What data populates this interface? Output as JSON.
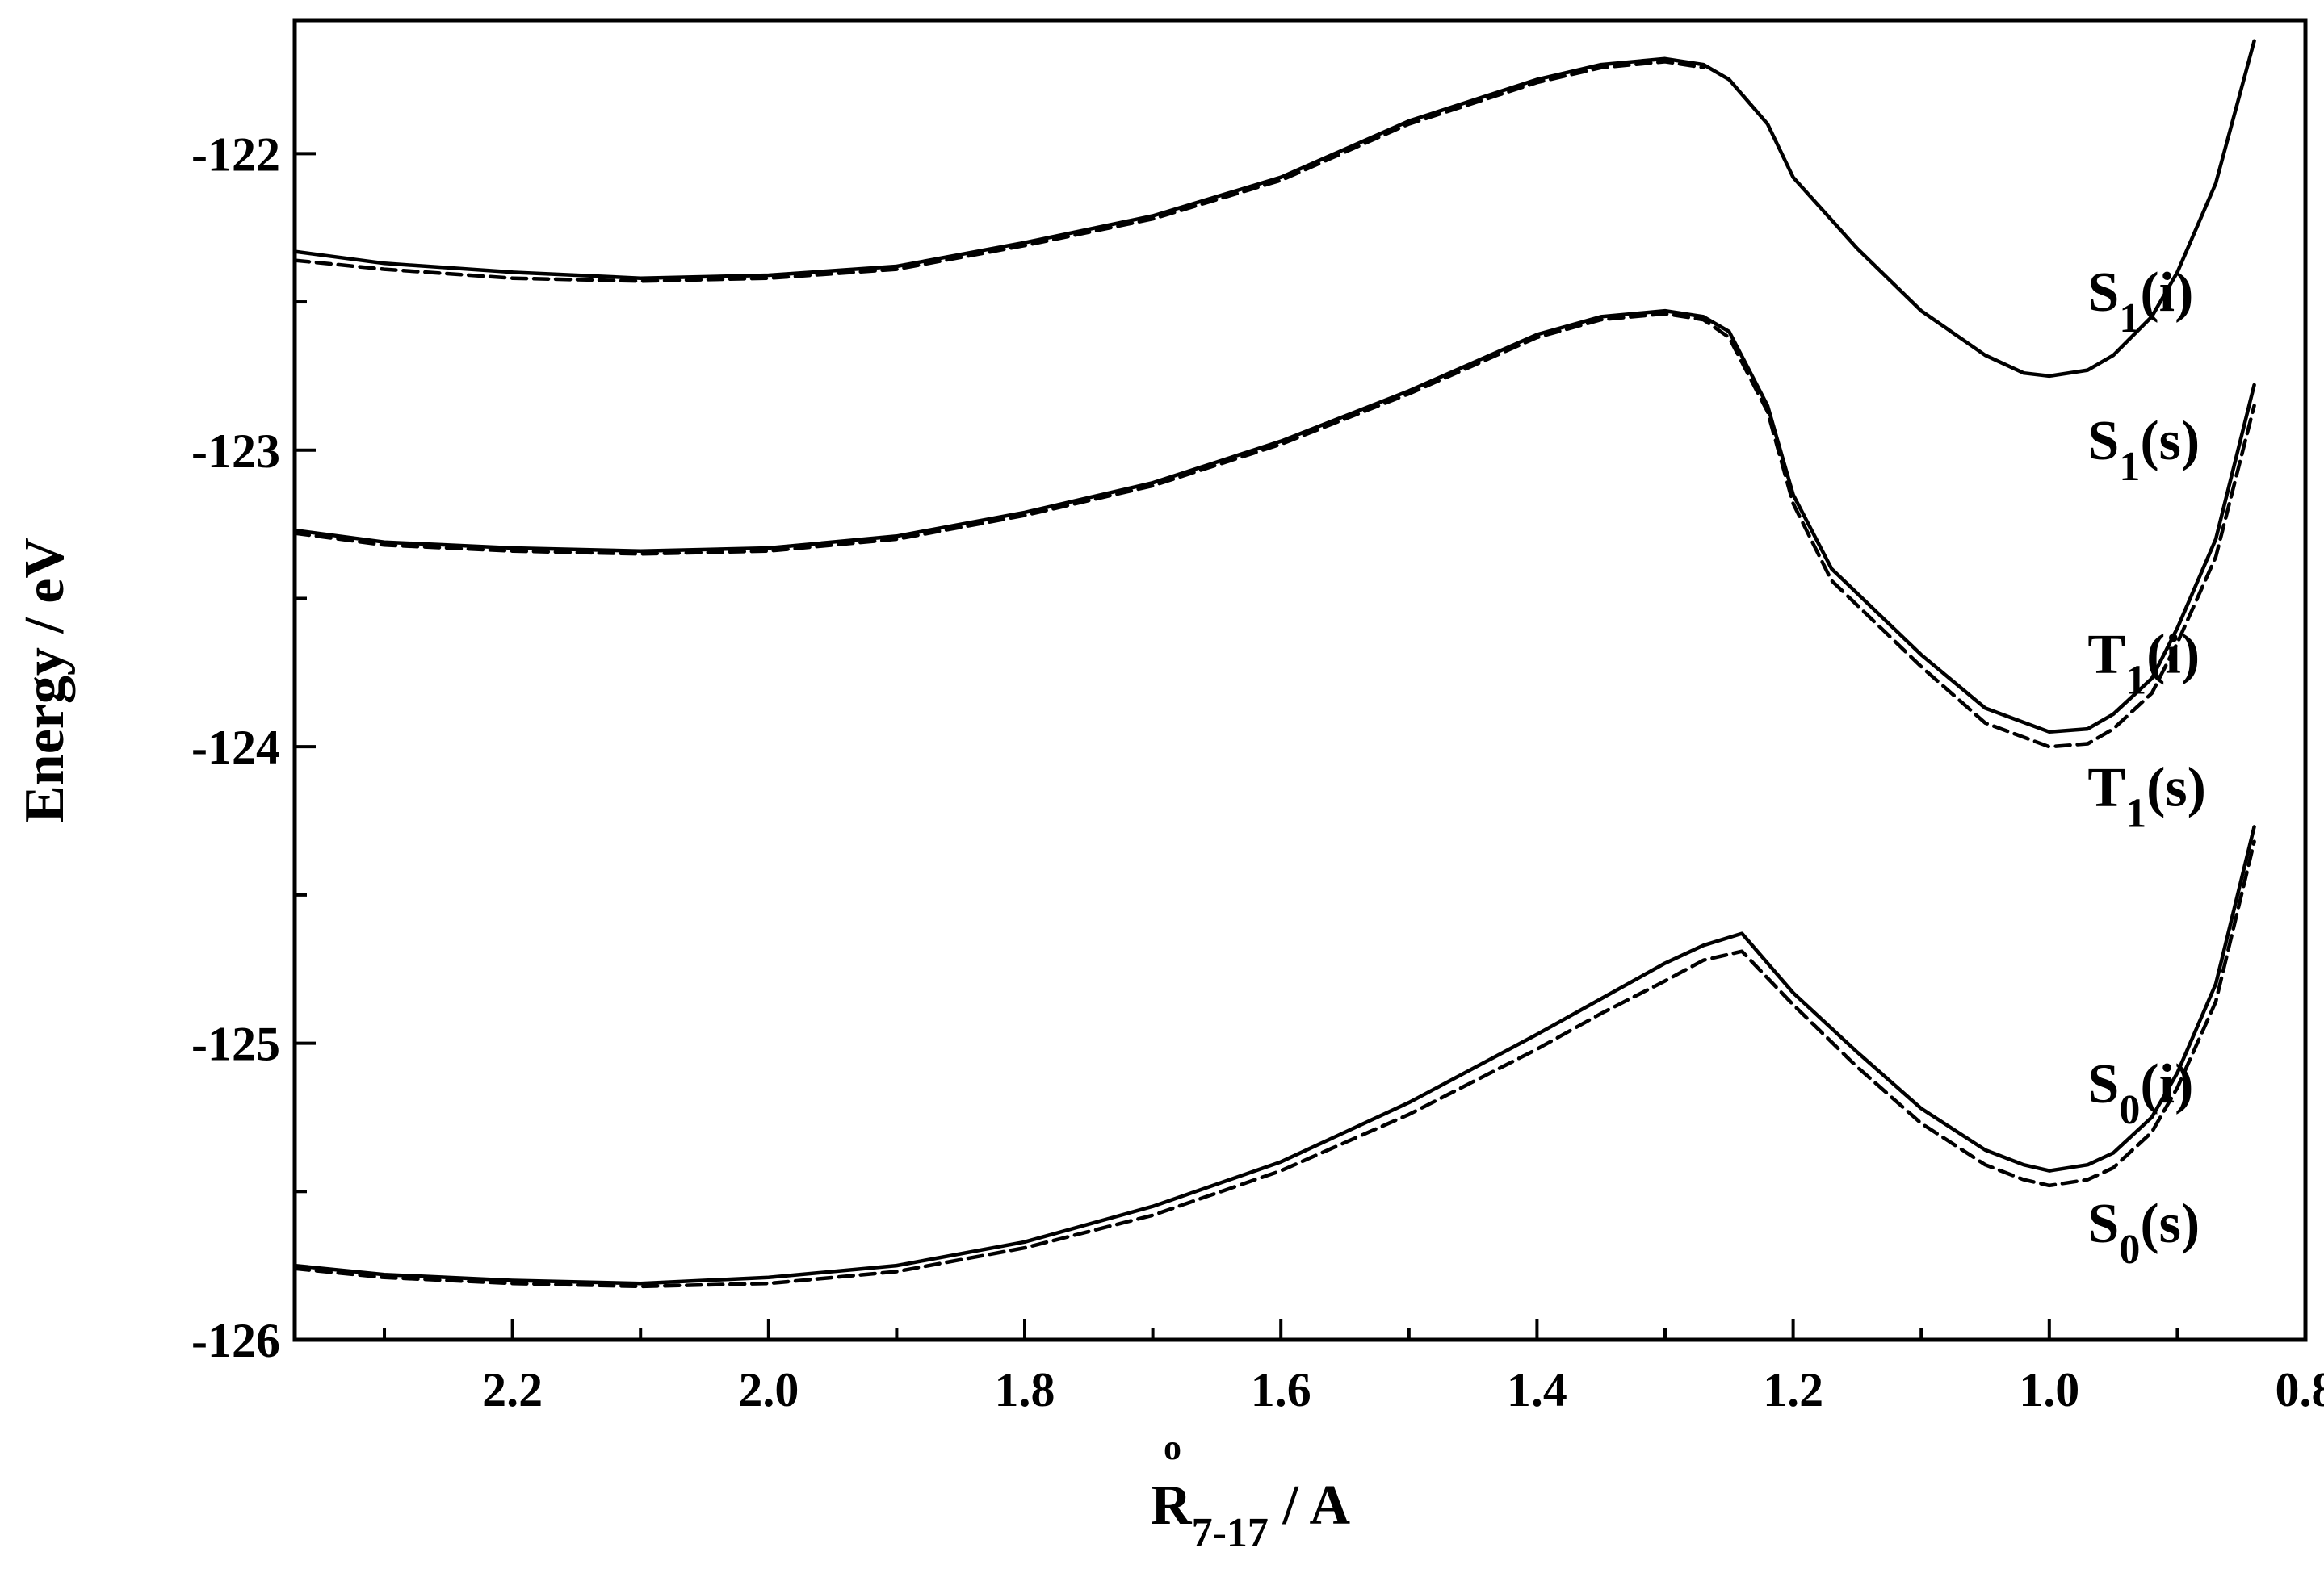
{
  "chart_data": {
    "type": "line",
    "title": "",
    "xlabel": {
      "main": "R",
      "sub": "7-17",
      "rest": " / A",
      "ring": "o"
    },
    "ylabel": "Energy / eV",
    "xlim": [
      2.37,
      0.8
    ],
    "ylim": [
      -126,
      -121.55
    ],
    "x_reversed": true,
    "x_ticks": [
      2.2,
      2.0,
      1.8,
      1.6,
      1.4,
      1.2,
      1.0,
      0.8
    ],
    "x_tick_labels": [
      "2.2",
      "2.0",
      "1.8",
      "1.6",
      "1.4",
      "1.2",
      "1.0",
      "0.8"
    ],
    "y_ticks": [
      -122,
      -123,
      -124,
      -125,
      -126
    ],
    "y_tick_labels": [
      "-122",
      "-123",
      "-124",
      "-125",
      "-126"
    ],
    "grid": false,
    "series": [
      {
        "key": "s1i",
        "style": "solid",
        "x": [
          2.37,
          2.3,
          2.2,
          2.1,
          2.0,
          1.9,
          1.8,
          1.7,
          1.6,
          1.5,
          1.4,
          1.35,
          1.3,
          1.27,
          1.25,
          1.22,
          1.2,
          1.15,
          1.1,
          1.05,
          1.02,
          1.0,
          0.97,
          0.95,
          0.92,
          0.9,
          0.87,
          0.84
        ],
        "y": [
          -122.33,
          -122.37,
          -122.4,
          -122.42,
          -122.41,
          -122.38,
          -122.3,
          -122.21,
          -122.08,
          -121.89,
          -121.75,
          -121.7,
          -121.68,
          -121.7,
          -121.75,
          -121.9,
          -122.08,
          -122.32,
          -122.53,
          -122.68,
          -122.74,
          -122.75,
          -122.73,
          -122.68,
          -122.55,
          -122.4,
          -122.1,
          -121.62
        ]
      },
      {
        "key": "s1s",
        "style": "dashed",
        "x": [
          2.37,
          2.3,
          2.2,
          2.1,
          2.0,
          1.9,
          1.8,
          1.7,
          1.6,
          1.5,
          1.4,
          1.35,
          1.3,
          1.27
        ],
        "y": [
          -122.36,
          -122.39,
          -122.42,
          -122.43,
          -122.42,
          -122.39,
          -122.31,
          -122.22,
          -122.09,
          -121.9,
          -121.76,
          -121.71,
          -121.69,
          -121.71
        ]
      },
      {
        "key": "t1i",
        "style": "solid",
        "x": [
          2.37,
          2.3,
          2.2,
          2.1,
          2.0,
          1.9,
          1.8,
          1.7,
          1.6,
          1.5,
          1.4,
          1.35,
          1.3,
          1.27,
          1.25,
          1.22,
          1.2,
          1.17,
          1.1,
          1.05,
          1.0,
          0.97,
          0.95,
          0.92,
          0.9,
          0.87,
          0.84
        ],
        "y": [
          -123.27,
          -123.31,
          -123.33,
          -123.34,
          -123.33,
          -123.29,
          -123.21,
          -123.11,
          -122.97,
          -122.8,
          -122.61,
          -122.55,
          -122.53,
          -122.55,
          -122.6,
          -122.85,
          -123.15,
          -123.4,
          -123.69,
          -123.87,
          -123.95,
          -123.94,
          -123.89,
          -123.77,
          -123.6,
          -123.3,
          -122.78
        ]
      },
      {
        "key": "t1s",
        "style": "dashed",
        "x": [
          2.37,
          2.3,
          2.2,
          2.1,
          2.0,
          1.9,
          1.8,
          1.7,
          1.6,
          1.5,
          1.4,
          1.35,
          1.3,
          1.27,
          1.25,
          1.22,
          1.2,
          1.17,
          1.1,
          1.05,
          1.0,
          0.97,
          0.95,
          0.92,
          0.9,
          0.87,
          0.84
        ],
        "y": [
          -123.28,
          -123.32,
          -123.34,
          -123.35,
          -123.34,
          -123.3,
          -123.22,
          -123.12,
          -122.98,
          -122.81,
          -122.62,
          -122.56,
          -122.54,
          -122.56,
          -122.62,
          -122.87,
          -123.18,
          -123.44,
          -123.73,
          -123.92,
          -124.0,
          -123.99,
          -123.94,
          -123.82,
          -123.65,
          -123.36,
          -122.85
        ]
      },
      {
        "key": "s0i",
        "style": "solid",
        "x": [
          2.37,
          2.3,
          2.2,
          2.1,
          2.0,
          1.9,
          1.8,
          1.7,
          1.6,
          1.5,
          1.4,
          1.35,
          1.3,
          1.27,
          1.24,
          1.2,
          1.15,
          1.1,
          1.05,
          1.02,
          1.0,
          0.97,
          0.95,
          0.92,
          0.9,
          0.87,
          0.84
        ],
        "y": [
          -125.75,
          -125.78,
          -125.8,
          -125.81,
          -125.79,
          -125.75,
          -125.67,
          -125.55,
          -125.4,
          -125.2,
          -124.97,
          -124.85,
          -124.73,
          -124.67,
          -124.63,
          -124.83,
          -125.03,
          -125.22,
          -125.36,
          -125.41,
          -125.43,
          -125.41,
          -125.37,
          -125.25,
          -125.1,
          -124.8,
          -124.27
        ]
      },
      {
        "key": "s0s",
        "style": "dashed",
        "x": [
          2.37,
          2.3,
          2.2,
          2.1,
          2.0,
          1.9,
          1.8,
          1.7,
          1.6,
          1.5,
          1.4,
          1.35,
          1.3,
          1.27,
          1.24,
          1.2,
          1.15,
          1.1,
          1.05,
          1.02,
          1.0,
          0.97,
          0.95,
          0.92,
          0.9,
          0.87,
          0.84
        ],
        "y": [
          -125.76,
          -125.79,
          -125.81,
          -125.82,
          -125.81,
          -125.77,
          -125.69,
          -125.58,
          -125.43,
          -125.24,
          -125.02,
          -124.9,
          -124.79,
          -124.72,
          -124.69,
          -124.87,
          -125.08,
          -125.27,
          -125.41,
          -125.46,
          -125.48,
          -125.46,
          -125.42,
          -125.3,
          -125.15,
          -124.86,
          -124.32
        ]
      }
    ],
    "annotations": [
      {
        "main": "S",
        "sub": "1",
        "rest": "(i)",
        "x": 0.97,
        "y": -122.53
      },
      {
        "main": "S",
        "sub": "1",
        "rest": "(s)",
        "x": 0.97,
        "y": -123.03
      },
      {
        "main": "T",
        "sub": "1",
        "rest": "(i)",
        "x": 0.97,
        "y": -123.75
      },
      {
        "main": "T",
        "sub": "1",
        "rest": "(s)",
        "x": 0.97,
        "y": -124.2
      },
      {
        "main": "S",
        "sub": "0",
        "rest": "(i)",
        "x": 0.97,
        "y": -125.2
      },
      {
        "main": "S",
        "sub": "0",
        "rest": "(s)",
        "x": 0.97,
        "y": -125.67
      }
    ]
  }
}
